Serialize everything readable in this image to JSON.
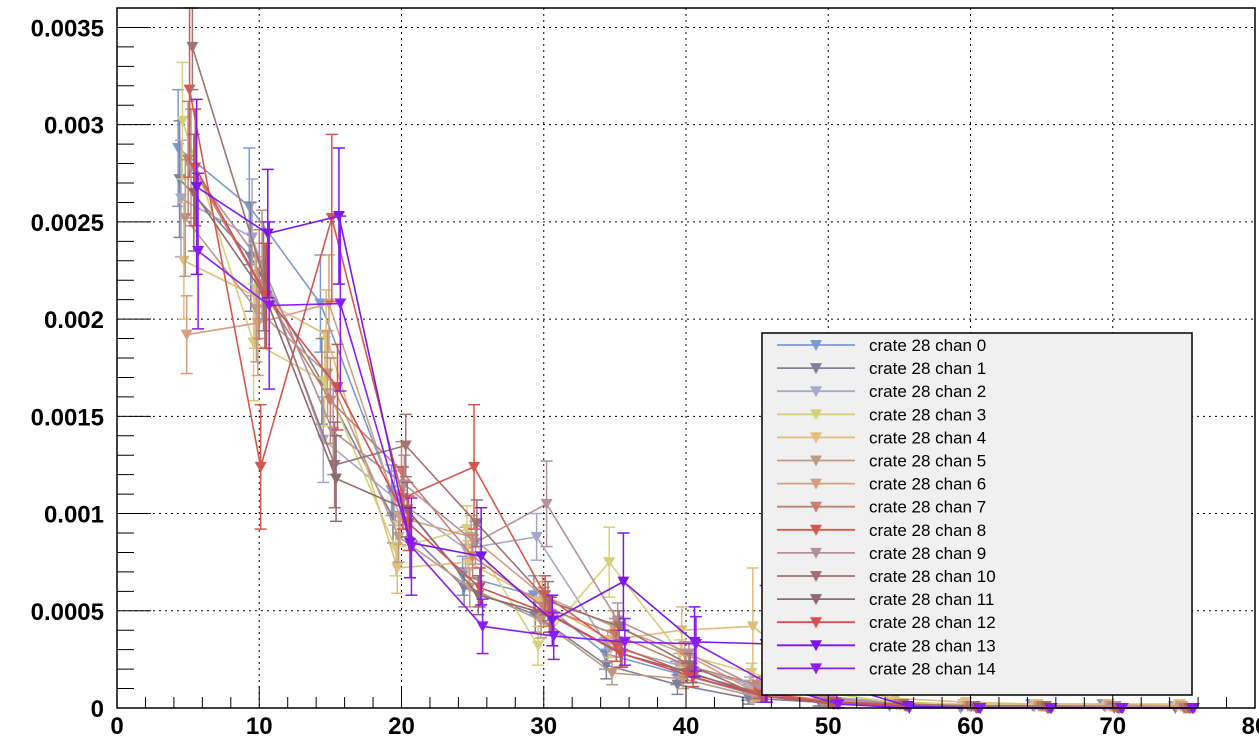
{
  "chart_data": {
    "type": "line",
    "title": "",
    "xlabel": "",
    "ylabel": "",
    "xlim": [
      0,
      80
    ],
    "ylim": [
      0,
      0.0036
    ],
    "grid": true,
    "legend_position": "bottom-right",
    "x_ticks": [
      {
        "value": 0,
        "label": "0"
      },
      {
        "value": 10,
        "label": "10"
      },
      {
        "value": 20,
        "label": "20"
      },
      {
        "value": 30,
        "label": "30"
      },
      {
        "value": 40,
        "label": "40"
      },
      {
        "value": 50,
        "label": "50"
      },
      {
        "value": 60,
        "label": "60"
      },
      {
        "value": 70,
        "label": "70"
      },
      {
        "value": 80,
        "label": "80"
      }
    ],
    "y_ticks": [
      {
        "value": 0,
        "label": "0"
      },
      {
        "value": 0.0005,
        "label": "0.0005"
      },
      {
        "value": 0.001,
        "label": "0.001"
      },
      {
        "value": 0.0015,
        "label": "0.0015"
      },
      {
        "value": 0.002,
        "label": "0.002"
      },
      {
        "value": 0.0025,
        "label": "0.0025"
      },
      {
        "value": 0.003,
        "label": "0.003"
      },
      {
        "value": 0.0035,
        "label": "0.0035"
      }
    ],
    "x": [
      5,
      10,
      15,
      20,
      25,
      30,
      35,
      40,
      45,
      50,
      55,
      60,
      65,
      70,
      75
    ],
    "series": [
      {
        "name": "crate 28 chan 0",
        "color": "#7f9ad0",
        "values": [
          0.00288,
          0.00258,
          0.00208,
          0.00112,
          0.00068,
          0.00058,
          0.00028,
          0.00018,
          8e-05,
          4e-05,
          1e-05,
          0.0,
          2e-05,
          2e-05,
          1e-05
        ],
        "errors": [
          0.0003,
          0.0003,
          0.00025,
          0.00013,
          0.0001,
          0.0001,
          8e-05,
          6e-05,
          4e-05,
          3e-05,
          2e-05,
          1e-05,
          2e-05,
          2e-05,
          1e-05
        ]
      },
      {
        "name": "crate 28 chan 1",
        "color": "#81809a",
        "values": [
          0.00272,
          0.00232,
          0.00168,
          0.00098,
          0.00062,
          0.00048,
          0.00022,
          0.00012,
          5e-05,
          3e-05,
          2e-05,
          1e-05,
          1e-05,
          1e-05,
          0.0
        ],
        "errors": [
          0.0003,
          0.00028,
          0.00022,
          0.00013,
          0.0001,
          9e-05,
          7e-05,
          5e-05,
          3e-05,
          2e-05,
          2e-05,
          1e-05,
          1e-05,
          1e-05,
          1e-05
        ]
      },
      {
        "name": "crate 28 chan 2",
        "color": "#a7a7c8",
        "values": [
          0.00262,
          0.00242,
          0.00138,
          0.00108,
          0.00082,
          0.00088,
          0.00032,
          0.00022,
          0.00012,
          6e-05,
          3e-05,
          2e-05,
          1e-05,
          1e-05,
          1e-05
        ],
        "errors": [
          0.0003,
          0.0003,
          0.00022,
          0.00014,
          0.00011,
          0.00012,
          8e-05,
          6e-05,
          4e-05,
          3e-05,
          2e-05,
          1e-05,
          1e-05,
          1e-05,
          1e-05
        ]
      },
      {
        "name": "crate 28 chan 3",
        "color": "#d7d07a",
        "values": [
          0.00302,
          0.00188,
          0.00168,
          0.00082,
          0.00092,
          0.00032,
          0.00075,
          0.00028,
          0.00018,
          8e-05,
          3e-05,
          2e-05,
          2e-05,
          1e-05,
          1e-05
        ],
        "errors": [
          0.0003,
          0.0003,
          0.00023,
          0.00014,
          0.00012,
          0.0001,
          0.00018,
          7e-05,
          5e-05,
          3e-05,
          2e-05,
          2e-05,
          2e-05,
          1e-05,
          1e-05
        ]
      },
      {
        "name": "crate 28 chan 4",
        "color": "#e1bd7c",
        "values": [
          0.0023,
          0.00212,
          0.00192,
          0.00072,
          0.00075,
          0.00055,
          0.00035,
          0.0004,
          0.00042,
          0.00012,
          5e-05,
          3e-05,
          2e-05,
          2e-05,
          2e-05
        ],
        "errors": [
          0.0003,
          0.00027,
          0.00023,
          0.00013,
          0.00011,
          0.0001,
          9e-05,
          0.00012,
          0.0003,
          4e-05,
          3e-05,
          2e-05,
          2e-05,
          2e-05,
          2e-05
        ]
      },
      {
        "name": "crate 28 chan 5",
        "color": "#bd9b83",
        "values": [
          0.00252,
          0.00205,
          0.00172,
          0.00088,
          0.00062,
          0.00045,
          0.00018,
          0.00015,
          6e-05,
          4e-05,
          2e-05,
          1e-05,
          1e-05,
          1e-05,
          1e-05
        ],
        "errors": [
          0.0003,
          0.00027,
          0.00022,
          0.00013,
          0.0001,
          9e-05,
          6e-05,
          5e-05,
          3e-05,
          2e-05,
          2e-05,
          1e-05,
          1e-05,
          1e-05,
          1e-05
        ]
      },
      {
        "name": "crate 28 chan 6",
        "color": "#d39f80",
        "values": [
          0.00192,
          0.00198,
          0.00208,
          0.00098,
          0.00088,
          0.00058,
          0.00042,
          0.00028,
          8e-05,
          4e-05,
          2e-05,
          1e-05,
          1e-05,
          1e-05,
          1e-05
        ],
        "errors": [
          0.0002,
          0.00027,
          0.00025,
          0.00014,
          0.00011,
          0.0001,
          8e-05,
          6e-05,
          4e-05,
          2e-05,
          2e-05,
          1e-05,
          1e-05,
          1e-05,
          1e-05
        ]
      },
      {
        "name": "crate 28 chan 7",
        "color": "#c7806d",
        "values": [
          0.00282,
          0.00218,
          0.00158,
          0.00122,
          0.00078,
          0.00052,
          0.00038,
          0.00022,
          0.00012,
          5e-05,
          2e-05,
          1e-05,
          1e-05,
          1e-05,
          0.0
        ],
        "errors": [
          0.0003,
          0.00028,
          0.00022,
          0.00015,
          0.00011,
          0.0001,
          8e-05,
          6e-05,
          4e-05,
          3e-05,
          2e-05,
          1e-05,
          1e-05,
          1e-05,
          1e-05
        ]
      },
      {
        "name": "crate 28 chan 8",
        "color": "#d5584f",
        "values": [
          0.00318,
          0.00124,
          0.00252,
          0.00108,
          0.00124,
          0.00058,
          0.00032,
          0.00018,
          8e-05,
          3e-05,
          2e-05,
          1e-05,
          1e-05,
          0.0,
          0.0
        ],
        "errors": [
          0.00045,
          0.00032,
          0.00043,
          0.00016,
          0.00032,
          0.0001,
          8e-05,
          5e-05,
          3e-05,
          2e-05,
          1e-05,
          1e-05,
          1e-05,
          1e-05,
          0.0
        ]
      },
      {
        "name": "crate 28 chan 9",
        "color": "#b49099",
        "values": [
          0.00278,
          0.00228,
          0.00142,
          0.00115,
          0.00085,
          0.00105,
          0.00045,
          0.00028,
          0.0001,
          5e-05,
          2e-05,
          1e-05,
          1e-05,
          1e-05,
          0.0
        ],
        "errors": [
          0.0003,
          0.00028,
          0.00022,
          0.00015,
          0.00011,
          0.00022,
          9e-05,
          6e-05,
          4e-05,
          2e-05,
          2e-05,
          1e-05,
          1e-05,
          1e-05,
          0.0
        ]
      },
      {
        "name": "crate 28 chan 10",
        "color": "#a07272",
        "values": [
          0.0034,
          0.00222,
          0.00125,
          0.00135,
          0.00095,
          0.00055,
          0.00042,
          0.00022,
          6e-05,
          3e-05,
          2e-05,
          1e-05,
          1e-05,
          0.0,
          0.0
        ],
        "errors": [
          0.00022,
          0.00028,
          0.00022,
          0.00016,
          0.00012,
          0.0001,
          8e-05,
          6e-05,
          3e-05,
          2e-05,
          1e-05,
          1e-05,
          1e-05,
          0.0,
          0.0
        ]
      },
      {
        "name": "crate 28 chan 11",
        "color": "#8e6a6e",
        "values": [
          0.00265,
          0.00212,
          0.00118,
          0.00102,
          0.00058,
          0.00048,
          0.00028,
          0.00018,
          6e-05,
          2e-05,
          1e-05,
          0.0,
          0.0,
          0.0,
          0.0
        ],
        "errors": [
          0.0003,
          0.00027,
          0.00022,
          0.00014,
          0.0001,
          9e-05,
          7e-05,
          5e-05,
          3e-05,
          2e-05,
          1e-05,
          0.0,
          0.0,
          0.0,
          0.0
        ]
      },
      {
        "name": "crate 28 chan 12",
        "color": "#d44f4f",
        "values": [
          0.00278,
          0.00212,
          0.00165,
          0.00095,
          0.00062,
          0.00048,
          0.00028,
          0.00016,
          6e-05,
          3e-05,
          1e-05,
          0.0,
          0.0,
          0.0,
          0.0
        ],
        "errors": [
          0.0003,
          0.00027,
          0.00022,
          0.00014,
          0.0001,
          9e-05,
          7e-05,
          5e-05,
          3e-05,
          2e-05,
          1e-05,
          0.0,
          0.0,
          0.0,
          0.0
        ]
      },
      {
        "name": "crate 28 chan 13",
        "color": "#7a18e8",
        "values": [
          0.00268,
          0.00244,
          0.00253,
          0.00085,
          0.00078,
          0.00045,
          0.00065,
          0.00034,
          0.00033,
          0.00012,
          1e-05,
          0.0,
          0.0,
          0.0,
          0.0
        ],
        "errors": [
          0.00045,
          0.00033,
          0.00035,
          0.00018,
          0.00025,
          0.00013,
          0.00025,
          0.00018,
          0.0003,
          8e-05,
          1e-05,
          0.0,
          0.0,
          0.0,
          0.0
        ]
      },
      {
        "name": "crate 28 chan 14",
        "color": "#8c1cf5",
        "values": [
          0.00235,
          0.00207,
          0.00208,
          0.00083,
          0.00042,
          0.00037,
          0.00034,
          0.00033,
          0.00013,
          2e-05,
          0.0,
          0.0,
          0.0,
          0.0,
          0.0
        ],
        "errors": [
          0.0004,
          0.00043,
          0.00045,
          0.00025,
          0.00014,
          0.00012,
          0.00012,
          0.00014,
          0.0001,
          2e-05,
          0.0,
          0.0,
          0.0,
          0.0,
          0.0
        ]
      }
    ]
  }
}
